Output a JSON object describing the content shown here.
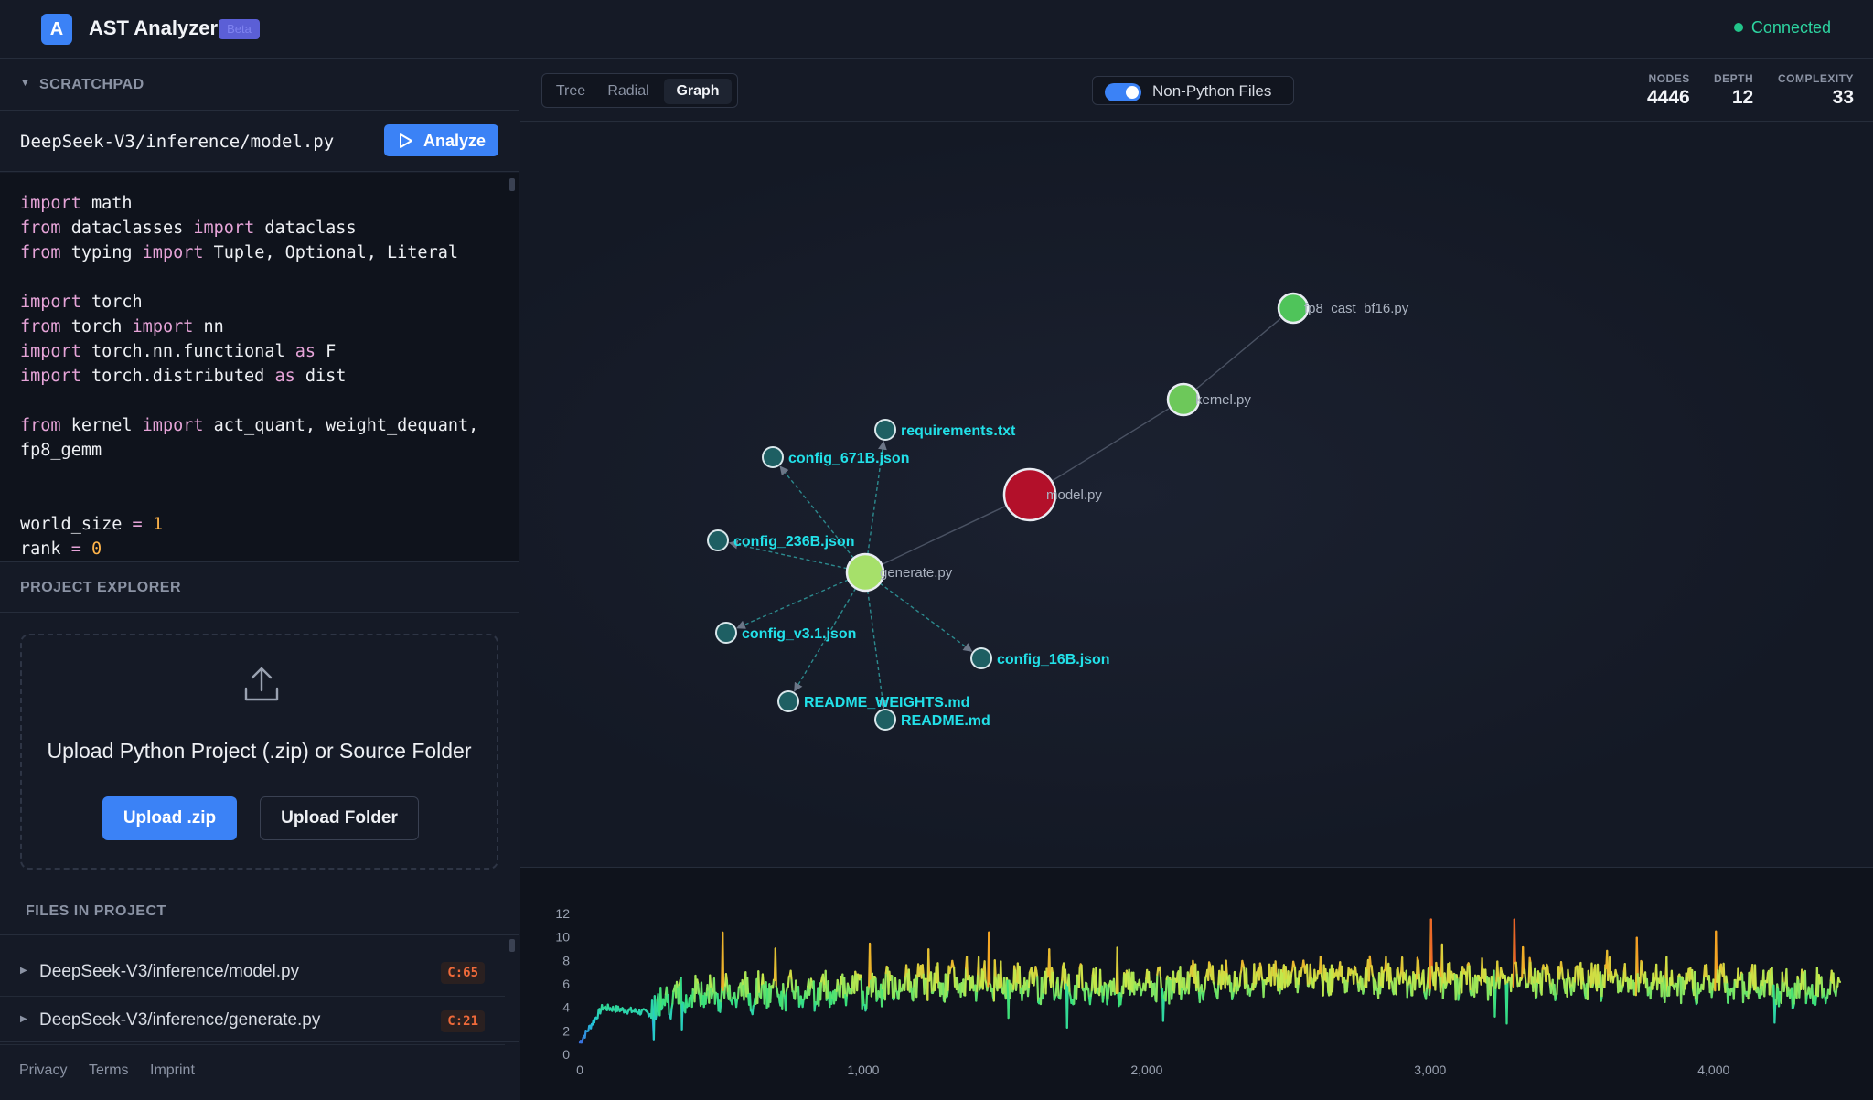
{
  "header": {
    "logo_letter": "A",
    "title": "AST Analyzer",
    "badge": "Beta",
    "status": "Connected"
  },
  "scratchpad": {
    "section_label": "SCRATCHPAD",
    "file_path": "DeepSeek-V3/inference/model.py",
    "analyze_label": "Analyze",
    "code_lines": [
      "import math",
      "from dataclasses import dataclass",
      "from typing import Tuple, Optional, Literal",
      "",
      "import torch",
      "from torch import nn",
      "import torch.nn.functional as F",
      "import torch.distributed as dist",
      "",
      "from kernel import act_quant, weight_dequant,",
      "fp8_gemm",
      "",
      "",
      "world_size = 1",
      "rank = 0"
    ]
  },
  "explorer": {
    "section_label": "PROJECT EXPLORER",
    "upload_text": "Upload Python Project (.zip) or Source Folder",
    "upload_zip_label": "Upload .zip",
    "upload_folder_label": "Upload Folder",
    "files_label": "FILES IN PROJECT",
    "files": [
      {
        "name": "DeepSeek-V3/inference/model.py",
        "complexity": "C:65"
      },
      {
        "name": "DeepSeek-V3/inference/generate.py",
        "complexity": "C:21"
      }
    ]
  },
  "footer": {
    "links": [
      "Privacy",
      "Terms",
      "Imprint"
    ]
  },
  "toolbar": {
    "tabs": [
      "Tree",
      "Radial",
      "Graph"
    ],
    "active_tab": "Graph",
    "toggle_label": "Non-Python Files",
    "toggle_on": true,
    "stats": [
      {
        "label": "NODES",
        "value": "4446"
      },
      {
        "label": "DEPTH",
        "value": "12"
      },
      {
        "label": "COMPLEXITY",
        "value": "33"
      }
    ]
  },
  "graph": {
    "nodes": [
      {
        "id": "fp8_cast_bf16.py",
        "kind": "python",
        "color": "#4fc45a"
      },
      {
        "id": "kernel.py",
        "kind": "python",
        "color": "#6dc85a"
      },
      {
        "id": "model.py",
        "kind": "python",
        "color": "#b3102a"
      },
      {
        "id": "generate.py",
        "kind": "python",
        "color": "#a6e06a"
      },
      {
        "id": "requirements.txt",
        "kind": "file",
        "color": "#1e5f63"
      },
      {
        "id": "config_671B.json",
        "kind": "file",
        "color": "#1e5f63"
      },
      {
        "id": "config_236B.json",
        "kind": "file",
        "color": "#1e5f63"
      },
      {
        "id": "config_v3.1.json",
        "kind": "file",
        "color": "#1e5f63"
      },
      {
        "id": "config_16B.json",
        "kind": "file",
        "color": "#1e5f63"
      },
      {
        "id": "README_WEIGHTS.md",
        "kind": "file",
        "color": "#1e5f63"
      },
      {
        "id": "README.md",
        "kind": "file",
        "color": "#1e5f63"
      }
    ],
    "edges": [
      [
        "kernel.py",
        "fp8_cast_bf16.py"
      ],
      [
        "model.py",
        "kernel.py"
      ],
      [
        "generate.py",
        "model.py"
      ],
      [
        "generate.py",
        "requirements.txt"
      ],
      [
        "generate.py",
        "config_671B.json"
      ],
      [
        "generate.py",
        "config_236B.json"
      ],
      [
        "generate.py",
        "config_v3.1.json"
      ],
      [
        "generate.py",
        "config_16B.json"
      ],
      [
        "generate.py",
        "README_WEIGHTS.md"
      ],
      [
        "generate.py",
        "README.md"
      ]
    ]
  },
  "chart_data": {
    "type": "line",
    "x_ticks": [
      0,
      1000,
      2000,
      3000,
      4000
    ],
    "x_tick_labels": [
      "0",
      "1,000",
      "2,000",
      "3,000",
      "4,000"
    ],
    "y_ticks": [
      0,
      2,
      4,
      6,
      8,
      10,
      12
    ],
    "xlim": [
      0,
      4446
    ],
    "ylim": [
      0,
      12
    ],
    "color_scale": [
      "#3b6fe0",
      "#22c8d8",
      "#38e07a",
      "#c8e84a",
      "#f5a623",
      "#e8502a"
    ],
    "profile_keypoints": [
      [
        0,
        1
      ],
      [
        40,
        2.5
      ],
      [
        80,
        4
      ],
      [
        250,
        3.5
      ],
      [
        260,
        4.5
      ],
      [
        400,
        5.2
      ],
      [
        1000,
        5.5
      ],
      [
        1200,
        6.2
      ],
      [
        2000,
        5.8
      ],
      [
        2600,
        6.8
      ],
      [
        3000,
        6.3
      ],
      [
        3600,
        6.4
      ],
      [
        4200,
        5.8
      ],
      [
        4446,
        5.5
      ]
    ]
  }
}
